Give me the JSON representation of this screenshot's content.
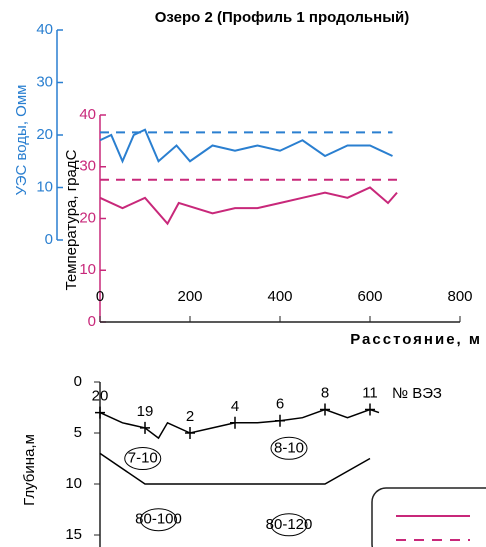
{
  "chart_data": [
    {
      "type": "line",
      "title": "Озеро 2 (Профиль 1 продольный)",
      "y_label": "УЭС воды, Омм",
      "y2_label": "Температура, градС",
      "x_label": "Расстояние, м",
      "xlim": [
        0,
        800
      ],
      "xticks": [
        0,
        200,
        400,
        600,
        800
      ],
      "ylim": [
        0,
        40
      ],
      "yticks": [
        0,
        10,
        20,
        30,
        40
      ],
      "y2lim": [
        0,
        40
      ],
      "y2ticks": [
        0,
        10,
        20,
        30,
        40
      ],
      "series": [
        {
          "color": "#2a7fd0",
          "dash": false,
          "x": [
            0,
            25,
            50,
            75,
            100,
            130,
            170,
            200,
            250,
            300,
            350,
            400,
            450,
            500,
            550,
            600,
            650
          ],
          "values": [
            19,
            20,
            15,
            20,
            21,
            15,
            18,
            15,
            18,
            17,
            18,
            17,
            19,
            16,
            18,
            18,
            16
          ]
        },
        {
          "color": "#2a7fd0",
          "dash": true,
          "x": [
            0,
            650
          ],
          "values": [
            20.5,
            20.5
          ]
        },
        {
          "color": "#c8287a",
          "dash": false,
          "axis": "y2",
          "x": [
            0,
            50,
            100,
            150,
            175,
            250,
            300,
            350,
            400,
            450,
            500,
            550,
            600,
            640,
            660
          ],
          "values": [
            24,
            22,
            24,
            19,
            23,
            21,
            22,
            22,
            23,
            24,
            25,
            24,
            26,
            23,
            25
          ]
        },
        {
          "color": "#c8287a",
          "dash": true,
          "axis": "y2",
          "x": [
            0,
            660
          ],
          "values": [
            27.5,
            27.5
          ]
        }
      ]
    },
    {
      "type": "depth",
      "y_label": "Глубина,м",
      "station_label": "№ ВЭЗ",
      "xlim": [
        0,
        800
      ],
      "ylim": [
        0,
        15
      ],
      "yticks": [
        0,
        5,
        10,
        15
      ],
      "series": [
        {
          "color": "#000000",
          "x": [
            0,
            50,
            100,
            130,
            150,
            200,
            250,
            300,
            350,
            400,
            450,
            500,
            550,
            600,
            620
          ],
          "values": [
            3,
            4,
            4.5,
            5.5,
            4,
            5,
            4.5,
            4,
            4,
            3.8,
            3.5,
            2.7,
            3.5,
            2.7,
            3
          ]
        },
        {
          "color": "#000000",
          "x": [
            0,
            100,
            500,
            600
          ],
          "values": [
            7,
            10,
            10,
            7.5
          ]
        }
      ],
      "stations": [
        {
          "label": "20",
          "x": 0,
          "depth": 3
        },
        {
          "label": "19",
          "x": 100,
          "depth": 4.5
        },
        {
          "label": "2",
          "x": 200,
          "depth": 5
        },
        {
          "label": "4",
          "x": 300,
          "depth": 4
        },
        {
          "label": "6",
          "x": 400,
          "depth": 3.8
        },
        {
          "label": "8",
          "x": 500,
          "depth": 2.7
        },
        {
          "label": "11",
          "x": 600,
          "depth": 2.7
        }
      ],
      "zones": [
        {
          "label": "7-10",
          "x": 95,
          "depth": 7.5
        },
        {
          "label": "8-10",
          "x": 420,
          "depth": 6.5
        },
        {
          "label": "80-100",
          "x": 130,
          "depth": 13.5
        },
        {
          "label": "80-120",
          "x": 420,
          "depth": 14
        }
      ]
    }
  ]
}
